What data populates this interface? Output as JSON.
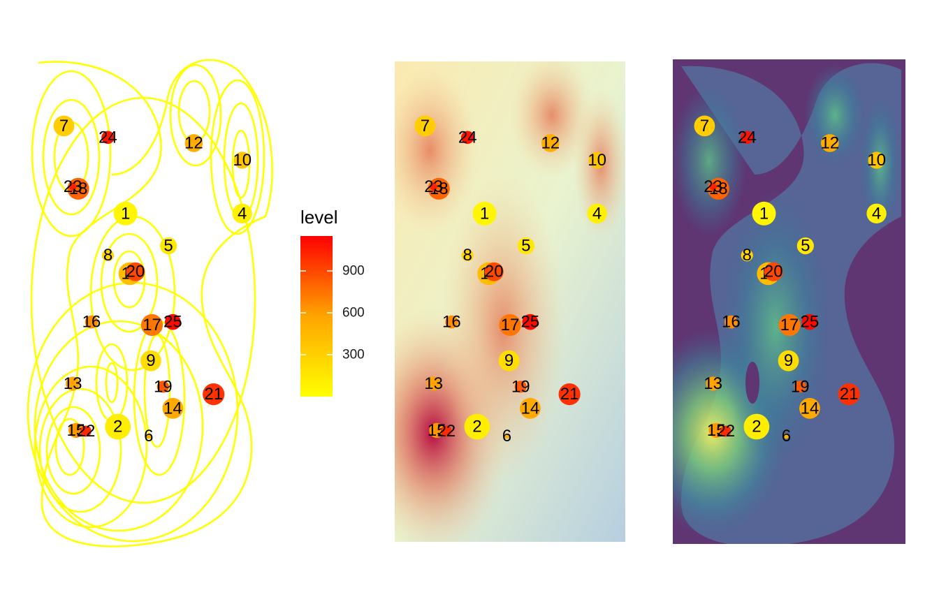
{
  "chart_data": {
    "type": "scatter",
    "description_panels": [
      "contour",
      "density-raster",
      "filled-contour"
    ],
    "points": [
      {
        "id": "1",
        "x": 0.38,
        "y": 0.705,
        "level": 60,
        "size": 20
      },
      {
        "id": "2",
        "x": 0.345,
        "y": 0.145,
        "level": 110,
        "size": 22
      },
      {
        "id": "3",
        "x": 0.14,
        "y": 0.255,
        "level": 180,
        "size": 6
      },
      {
        "id": "4",
        "x": 0.91,
        "y": 0.705,
        "level": 90,
        "size": 16
      },
      {
        "id": "5",
        "x": 0.575,
        "y": 0.62,
        "level": 150,
        "size": 13
      },
      {
        "id": "6",
        "x": 0.485,
        "y": 0.12,
        "level": 500,
        "size": 1
      },
      {
        "id": "7",
        "x": 0.1,
        "y": 0.935,
        "level": 320,
        "size": 17
      },
      {
        "id": "8",
        "x": 0.3,
        "y": 0.595,
        "level": 260,
        "size": 8
      },
      {
        "id": "9",
        "x": 0.495,
        "y": 0.318,
        "level": 220,
        "size": 17
      },
      {
        "id": "10",
        "x": 0.91,
        "y": 0.845,
        "level": 370,
        "size": 13
      },
      {
        "id": "11",
        "x": 0.4,
        "y": 0.547,
        "level": 430,
        "size": 19
      },
      {
        "id": "12",
        "x": 0.69,
        "y": 0.89,
        "level": 520,
        "size": 14
      },
      {
        "id": "13",
        "x": 0.14,
        "y": 0.258,
        "level": 580,
        "size": 10
      },
      {
        "id": "14",
        "x": 0.595,
        "y": 0.193,
        "level": 540,
        "size": 17
      },
      {
        "id": "15",
        "x": 0.155,
        "y": 0.135,
        "level": 620,
        "size": 11
      },
      {
        "id": "16",
        "x": 0.225,
        "y": 0.42,
        "level": 650,
        "size": 9
      },
      {
        "id": "17",
        "x": 0.5,
        "y": 0.412,
        "level": 740,
        "size": 18
      },
      {
        "id": "18",
        "x": 0.165,
        "y": 0.77,
        "level": 800,
        "size": 18
      },
      {
        "id": "19",
        "x": 0.55,
        "y": 0.25,
        "level": 840,
        "size": 8
      },
      {
        "id": "20",
        "x": 0.425,
        "y": 0.552,
        "level": 900,
        "size": 15
      },
      {
        "id": "21",
        "x": 0.78,
        "y": 0.23,
        "level": 980,
        "size": 18
      },
      {
        "id": "22",
        "x": 0.2,
        "y": 0.133,
        "level": 1000,
        "size": 7
      },
      {
        "id": "23",
        "x": 0.14,
        "y": 0.775,
        "level": 1040,
        "size": 3
      },
      {
        "id": "24",
        "x": 0.3,
        "y": 0.905,
        "level": 1080,
        "size": 9
      },
      {
        "id": "25",
        "x": 0.595,
        "y": 0.42,
        "level": 1120,
        "size": 12
      }
    ],
    "xlim": [
      0,
      1
    ],
    "ylim": [
      0,
      1
    ],
    "legend": {
      "title": "level",
      "ticks": [
        300,
        600,
        900
      ],
      "range": [
        0,
        1150
      ],
      "colors": [
        "#FFFF00",
        "#FFA500",
        "#FF0000"
      ],
      "position": "between first and second panel"
    }
  }
}
